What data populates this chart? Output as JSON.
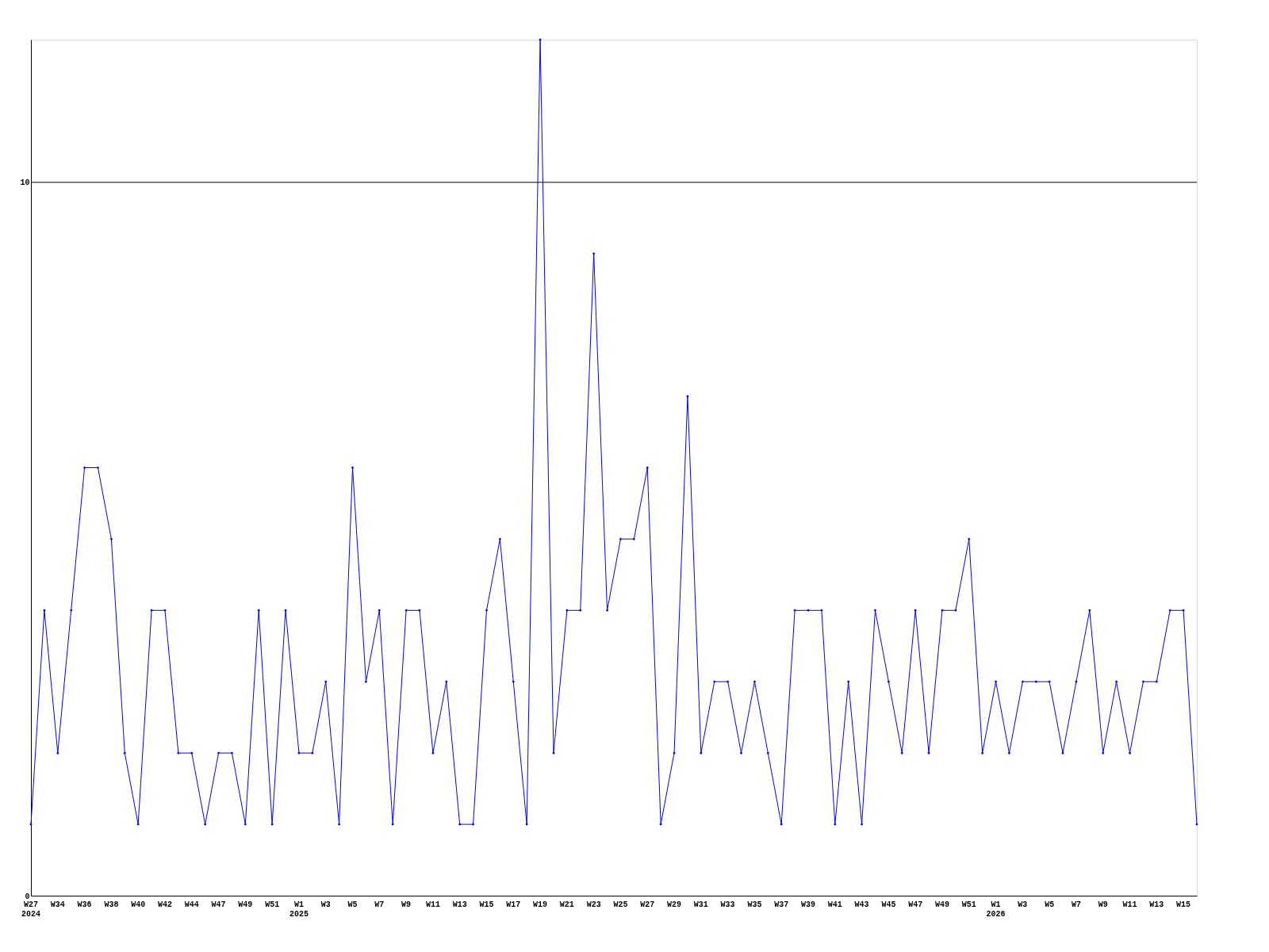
{
  "chart_data": {
    "type": "line",
    "categories": [
      "W27\n2024",
      null,
      "W34",
      null,
      "W36",
      null,
      "W38",
      null,
      "W40",
      null,
      "W42",
      null,
      "W44",
      null,
      "W47",
      null,
      "W49",
      null,
      "W51",
      null,
      "W1\n2025",
      null,
      "W3",
      null,
      "W5",
      null,
      "W7",
      null,
      "W9",
      null,
      "W11",
      null,
      "W13",
      null,
      "W15",
      null,
      "W17",
      null,
      "W19",
      null,
      "W21",
      null,
      "W23",
      null,
      "W25",
      null,
      "W27",
      null,
      "W29",
      null,
      "W31",
      null,
      "W33",
      null,
      "W35",
      null,
      "W37",
      null,
      "W39",
      null,
      "W41",
      null,
      "W43",
      null,
      "W45",
      null,
      "W47",
      null,
      "W49",
      null,
      "W51",
      null,
      "W1\n2026",
      null,
      "W3",
      null,
      "W5",
      null,
      "W7",
      null,
      "W9",
      null,
      "W11",
      null,
      "W13",
      null,
      "W15",
      null
    ],
    "series": [
      {
        "color": "#0000ff",
        "values": [
          1,
          4,
          2,
          4,
          6,
          6,
          5,
          2,
          1,
          4,
          4,
          2,
          2,
          1,
          2,
          2,
          1,
          4,
          1,
          4,
          2,
          2,
          3,
          1,
          6,
          3,
          4,
          1,
          4,
          4,
          2,
          3,
          1,
          1,
          4,
          5,
          3,
          1,
          12,
          2,
          4,
          4,
          9,
          4,
          5,
          5,
          6,
          1,
          2,
          7,
          2,
          3,
          3,
          2,
          3,
          2,
          1,
          4,
          4,
          4,
          1,
          3,
          1,
          4,
          3,
          2,
          4,
          2,
          4,
          4,
          5,
          2,
          3,
          2,
          3,
          3,
          3,
          2,
          3,
          4,
          2,
          3,
          2,
          3,
          3,
          4,
          4,
          1
        ]
      }
    ],
    "ylim": [
      0,
      12
    ],
    "yticks": [
      0,
      10
    ],
    "ref_lines": [
      {
        "axis": "y",
        "value": 10,
        "color": "#000000"
      }
    ],
    "grid": false,
    "marker": "diamond",
    "line_style": "solid"
  }
}
